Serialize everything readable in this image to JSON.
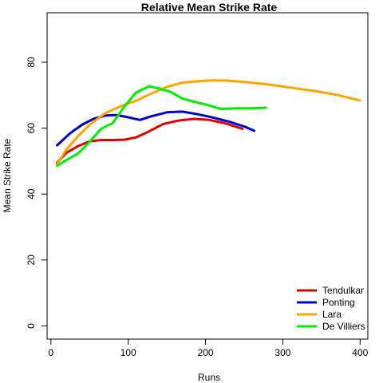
{
  "chart_data": {
    "type": "line",
    "title": "Relative Mean Strike Rate",
    "xlabel": "Runs",
    "ylabel": "Mean Strike Rate",
    "xlim": [
      -5,
      410
    ],
    "ylim": [
      -4,
      95
    ],
    "xticks": [
      0,
      100,
      200,
      300,
      400
    ],
    "yticks": [
      0,
      20,
      40,
      60,
      80
    ],
    "grid": false,
    "legend_position": "bottom-right",
    "series": [
      {
        "name": "Tendulkar",
        "color": "#dd0000",
        "x": [
          8,
          20,
          35,
          50,
          65,
          80,
          95,
          110,
          125,
          145,
          165,
          185,
          205,
          225,
          248
        ],
        "y": [
          49.5,
          52.5,
          54.5,
          56,
          56.4,
          56.4,
          56.5,
          57.2,
          58.8,
          61.2,
          62.3,
          62.8,
          62.5,
          61.5,
          59.8
        ]
      },
      {
        "name": "Ponting",
        "color": "#0000cc",
        "x": [
          8,
          25,
          40,
          55,
          70,
          85,
          100,
          115,
          130,
          150,
          170,
          190,
          210,
          230,
          250,
          263
        ],
        "y": [
          54.8,
          58.5,
          61,
          62.8,
          63.8,
          64,
          63.3,
          62.5,
          63.6,
          64.8,
          65,
          64.2,
          63.2,
          62,
          60.5,
          59.2
        ]
      },
      {
        "name": "Lara",
        "color": "#ffa500",
        "x": [
          8,
          20,
          35,
          50,
          70,
          90,
          110,
          130,
          150,
          170,
          190,
          210,
          230,
          250,
          280,
          310,
          340,
          370,
          400
        ],
        "y": [
          49,
          53.5,
          57.5,
          61,
          64.5,
          66.6,
          68.3,
          70.5,
          72.5,
          73.8,
          74.2,
          74.5,
          74.4,
          74,
          73.3,
          72.3,
          71.3,
          70.1,
          68.4
        ]
      },
      {
        "name": "De Villiers",
        "color": "#00ee00",
        "x": [
          8,
          20,
          35,
          50,
          65,
          80,
          95,
          110,
          127,
          140,
          155,
          170,
          185,
          200,
          220,
          240,
          260,
          278
        ],
        "y": [
          48.6,
          50.3,
          52.3,
          55.8,
          59.8,
          61.5,
          66.5,
          70.8,
          72.7,
          72,
          71,
          69,
          68,
          67.2,
          65.8,
          66,
          66,
          66.2
        ]
      }
    ]
  }
}
